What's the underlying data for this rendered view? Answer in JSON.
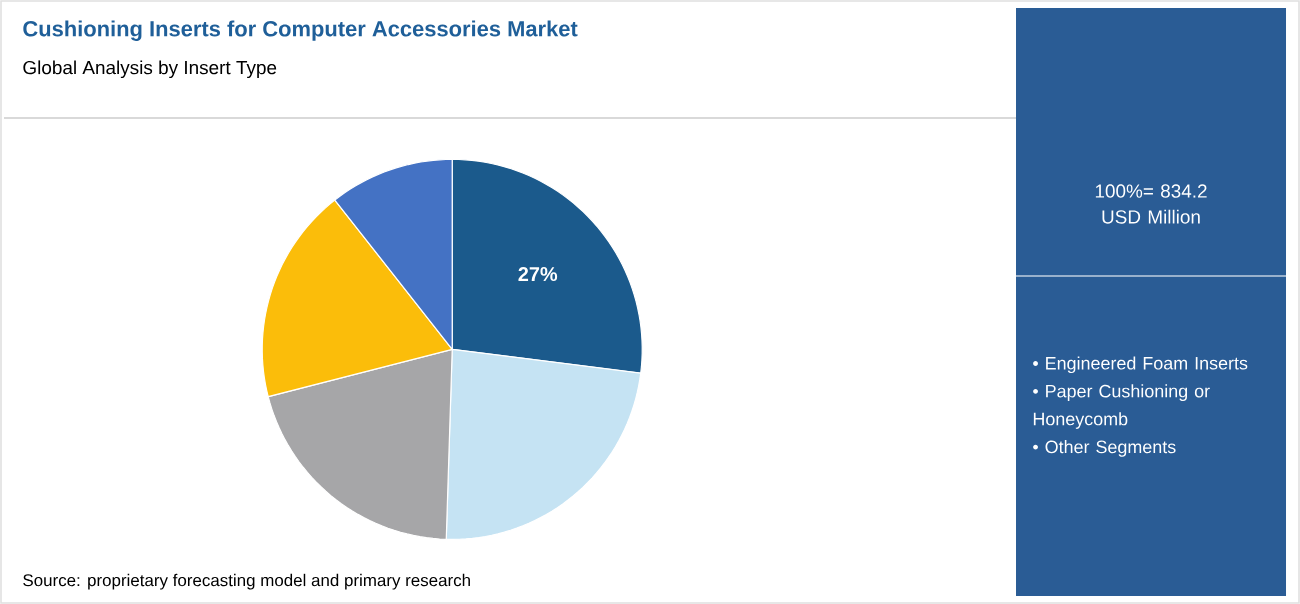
{
  "chart_data": {
    "type": "pie",
    "title": "Cushioning Inserts for Computer Accessories Market",
    "subtitle": "Global Analysis by Insert Type",
    "categories": [
      null,
      null,
      null,
      null,
      null
    ],
    "values": [
      27,
      23.5,
      20.5,
      18.4,
      10.6
    ],
    "colors": [
      "#1b5a8c",
      "#c5e3f3",
      "#a6a6a8",
      "#fbbd0a",
      "#4472c4"
    ],
    "value_labels": [
      "27%",
      null,
      null,
      null,
      null
    ],
    "annotations": [
      "Source: proprietary forecasting model and primary research",
      "100%= 834.2 USD Million",
      "• Engineered Foam Inserts",
      "• Paper Cushioning or Honeycomb",
      "• Other Segments"
    ]
  }
}
